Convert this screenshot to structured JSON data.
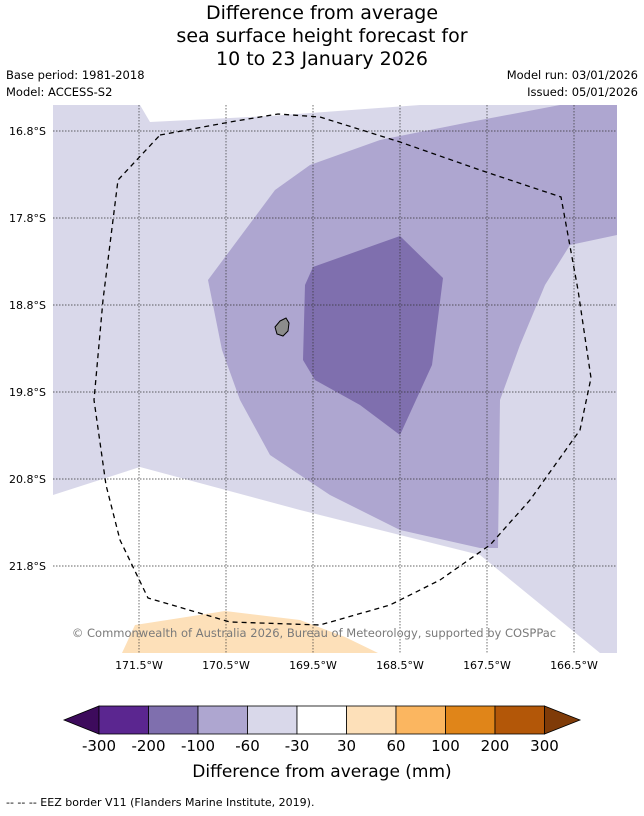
{
  "title": {
    "line1": "Difference from average",
    "line2": "sea surface height forecast for",
    "line3": "10 to 23 January 2026"
  },
  "meta": {
    "base_period": "Base period: 1981-2018",
    "model": "Model: ACCESS-S2",
    "model_run": "Model run: 03/01/2026",
    "issued": "Issued: 05/01/2026"
  },
  "map": {
    "lat_labels": [
      "16.8°S",
      "17.8°S",
      "18.8°S",
      "19.8°S",
      "20.8°S",
      "21.8°S"
    ],
    "lon_labels": [
      "171.5°W",
      "170.5°W",
      "169.5°W",
      "168.5°W",
      "167.5°W",
      "166.5°W"
    ],
    "copyright": "© Commonwealth of Australia 2026, Bureau of Meteorology, supported by COSPPac"
  },
  "colorbar": {
    "title": "Difference from average (mm)",
    "ticks": [
      "-300",
      "-200",
      "-100",
      "-60",
      "-30",
      "30",
      "60",
      "100",
      "200",
      "300"
    ],
    "colors": {
      "below_min": "#3d0b5c",
      "bins": [
        "#5b2690",
        "#7f6fae",
        "#aea6d0",
        "#d9d8ea",
        "#ffffff",
        "#fde0b9",
        "#fbb660",
        "#e08519",
        "#b35708"
      ],
      "above_max": "#7f3b08"
    }
  },
  "footer": "--  --  -- EEZ border V11 (Flanders Marine Institute, 2019)."
}
